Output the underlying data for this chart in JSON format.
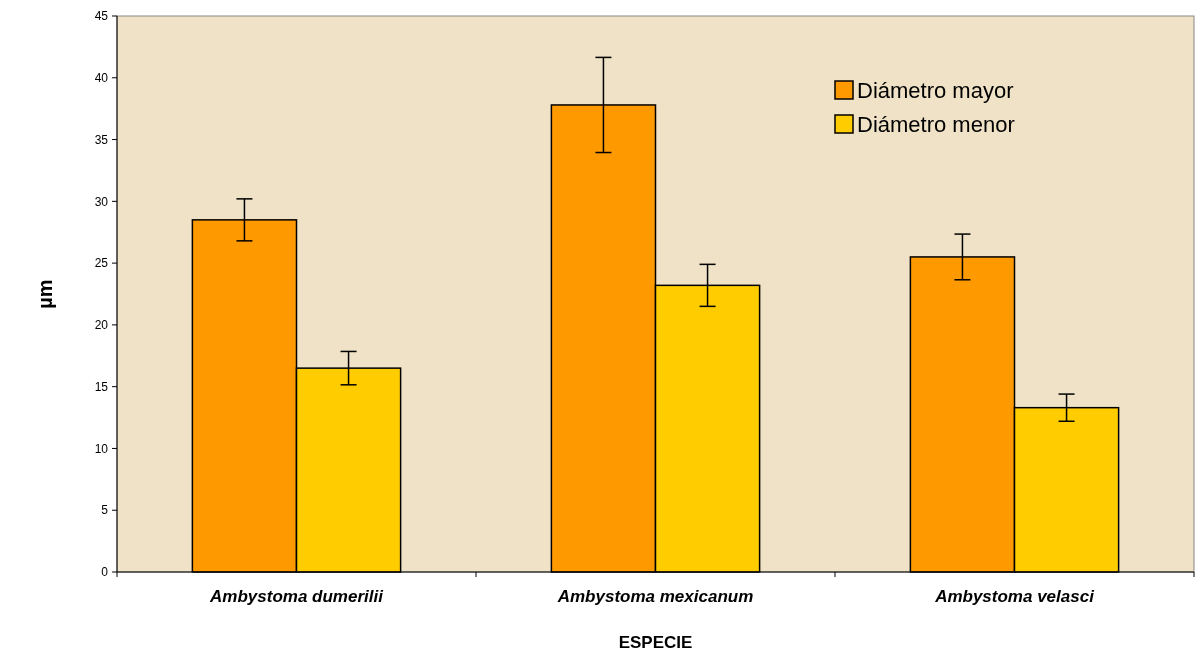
{
  "chart_data": {
    "type": "bar",
    "xlabel": "ESPECIE",
    "ylabel": "µm",
    "categories": [
      "Ambystoma dumerilii",
      "Ambystoma mexicanum",
      "Ambystoma velasci"
    ],
    "series": [
      {
        "name": "Diámetro mayor",
        "color": "#ff9900",
        "values": [
          28.5,
          37.8,
          25.5
        ],
        "errors": [
          1.7,
          3.85,
          1.85
        ]
      },
      {
        "name": "Diámetro menor",
        "color": "#ffcc00",
        "values": [
          16.5,
          23.2,
          13.3
        ],
        "errors": [
          1.35,
          1.7,
          1.1
        ]
      }
    ],
    "ylim": [
      0,
      45
    ],
    "yticks": [
      0,
      5,
      10,
      15,
      20,
      25,
      30,
      35,
      40,
      45
    ],
    "grid": false,
    "legend": "top right"
  }
}
